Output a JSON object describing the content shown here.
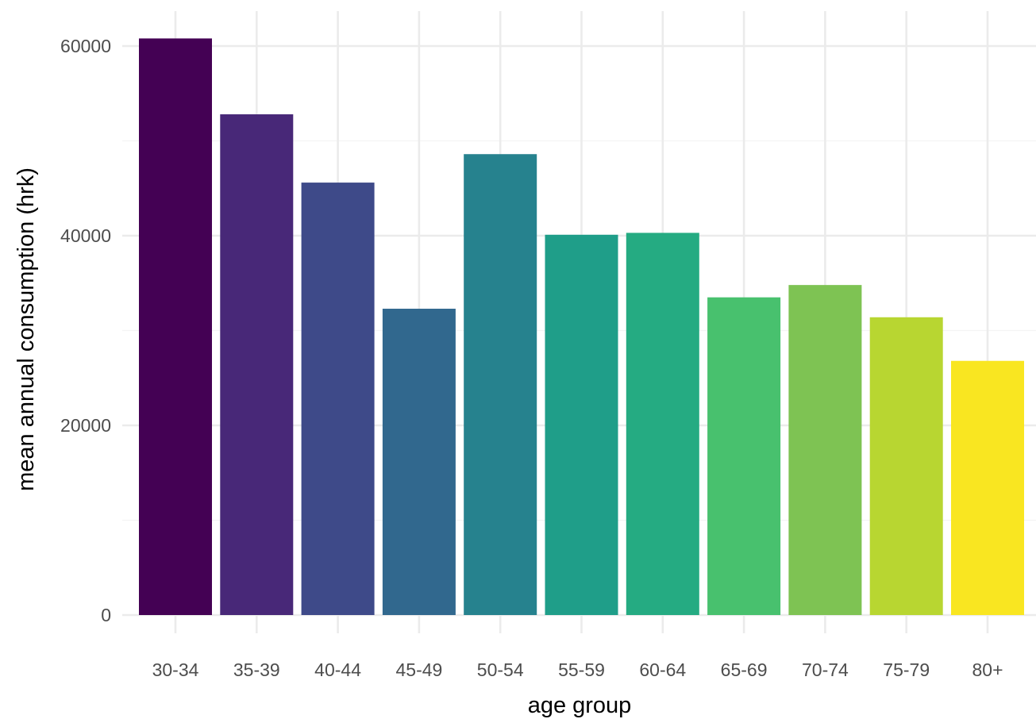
{
  "chart_data": {
    "type": "bar",
    "xlabel": "age group",
    "ylabel": "mean annual consumption (hrk)",
    "categories": [
      "30-34",
      "35-39",
      "40-44",
      "45-49",
      "50-54",
      "55-59",
      "60-64",
      "65-69",
      "70-74",
      "75-79",
      "80+"
    ],
    "values": [
      60800,
      52800,
      45600,
      32300,
      48600,
      40100,
      40300,
      33500,
      34800,
      31400,
      26800
    ],
    "colors": [
      "#440154",
      "#482878",
      "#3e4a89",
      "#31688e",
      "#26828e",
      "#1f9e89",
      "#25ab82",
      "#48c16e",
      "#7ec353",
      "#b8d631",
      "#f9e621"
    ],
    "yticks": [
      0,
      20000,
      40000,
      60000
    ],
    "ylim": [
      -1500,
      63500
    ],
    "grid": true,
    "legend": "none"
  }
}
